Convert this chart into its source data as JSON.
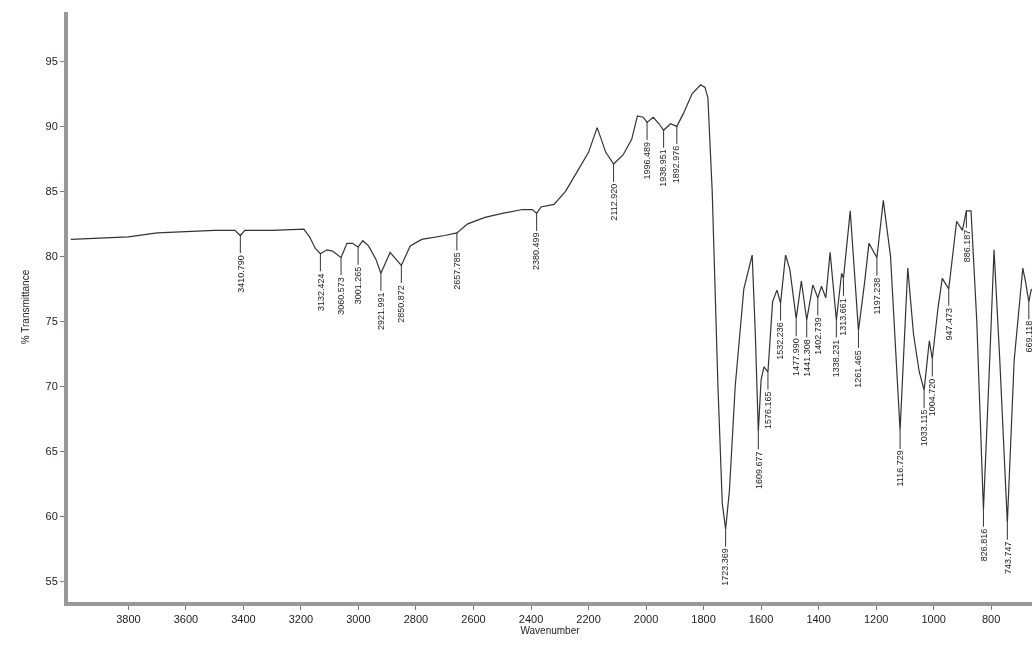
{
  "chart_data": {
    "type": "line",
    "xlabel": "Wavenumber",
    "ylabel": "% Transmittance",
    "x": [
      4000,
      3900,
      3800,
      3700,
      3600,
      3500,
      3430,
      3410.79,
      3395,
      3300,
      3190,
      3170,
      3150,
      3132.424,
      3110,
      3090,
      3060.573,
      3040,
      3020,
      3001.265,
      2985,
      2965,
      2940,
      2921.991,
      2890,
      2850.872,
      2820,
      2780,
      2700,
      2657.785,
      2620,
      2560,
      2500,
      2430,
      2395,
      2380.499,
      2365,
      2320,
      2280,
      2240,
      2200,
      2170,
      2140,
      2112.92,
      2080,
      2050,
      2030,
      2010,
      1996.489,
      1975,
      1955,
      1938.951,
      1915,
      1892.976,
      1870,
      1840,
      1810,
      1795,
      1785,
      1770,
      1750,
      1735,
      1723.369,
      1710,
      1690,
      1660,
      1631,
      1620,
      1609.677,
      1600,
      1590,
      1576.165,
      1560,
      1545,
      1532.236,
      1515,
      1500,
      1477.99,
      1460,
      1441.308,
      1420,
      1402.739,
      1390,
      1375,
      1360,
      1338.231,
      1320,
      1313.661,
      1290,
      1261.465,
      1240,
      1225,
      1197.238,
      1175,
      1150,
      1116.729,
      1090,
      1070,
      1050,
      1033.115,
      1015,
      1004.72,
      985,
      970,
      947.473,
      920,
      900,
      886.187,
      870,
      850,
      826.816,
      805,
      790,
      770,
      743.747,
      720,
      690,
      680,
      669.118,
      660
    ],
    "series": [
      {
        "color": "#333333",
        "values": [
          81.3,
          81.4,
          81.5,
          81.8,
          81.9,
          82.0,
          82.0,
          81.6,
          82.0,
          82.0,
          82.1,
          81.5,
          80.6,
          80.2,
          80.5,
          80.4,
          79.9,
          81.0,
          81.0,
          80.7,
          81.2,
          80.8,
          79.8,
          78.7,
          80.3,
          79.3,
          80.8,
          81.3,
          81.6,
          81.8,
          82.5,
          83.0,
          83.3,
          83.6,
          83.6,
          83.3,
          83.8,
          84.0,
          85.0,
          86.5,
          88.0,
          89.9,
          88.0,
          87.1,
          87.8,
          89.0,
          90.8,
          90.7,
          90.3,
          90.7,
          90.2,
          89.7,
          90.2,
          90.0,
          91.0,
          92.5,
          93.2,
          93.0,
          92.2,
          85.0,
          70.0,
          61.0,
          59.0,
          62.0,
          70.0,
          77.5,
          80.1,
          74.0,
          66.5,
          70.5,
          71.5,
          71.1,
          76.5,
          77.4,
          76.4,
          80.1,
          79.0,
          75.2,
          78.1,
          75.1,
          77.8,
          76.8,
          77.7,
          76.8,
          80.3,
          75.1,
          78.7,
          78.3,
          83.5,
          74.3,
          78.0,
          81.0,
          79.9,
          84.3,
          80.0,
          66.6,
          79.1,
          74.0,
          71.1,
          69.7,
          73.5,
          72.1,
          76.0,
          78.3,
          77.5,
          82.7,
          82.0,
          83.5,
          83.5,
          75.0,
          60.5,
          72.0,
          80.5,
          72.0,
          59.5,
          72.0,
          79.1,
          78.0,
          76.5,
          77.5
        ]
      }
    ],
    "xlim": [
      4010,
      658
    ],
    "ylim": [
      53.4,
      98.8
    ],
    "xticks": [
      3800,
      3600,
      3400,
      3200,
      3000,
      2800,
      2600,
      2400,
      2200,
      2000,
      1800,
      1600,
      1400,
      1200,
      1000,
      800
    ],
    "yticks": [
      55,
      60,
      65,
      70,
      75,
      80,
      85,
      90,
      95
    ],
    "marker": "none",
    "line_style": "solid",
    "annotations": [
      {
        "text": "3410.790",
        "x": 3410.79,
        "y": 81.6
      },
      {
        "text": "3132.424",
        "x": 3132.424,
        "y": 80.2
      },
      {
        "text": "3060.573",
        "x": 3060.573,
        "y": 79.9
      },
      {
        "text": "3001.265",
        "x": 3001.265,
        "y": 80.7
      },
      {
        "text": "2921.991",
        "x": 2921.991,
        "y": 78.7
      },
      {
        "text": "2850.872",
        "x": 2850.872,
        "y": 79.3
      },
      {
        "text": "2657.785",
        "x": 2657.785,
        "y": 81.8
      },
      {
        "text": "2380.499",
        "x": 2380.499,
        "y": 83.3
      },
      {
        "text": "2112.920",
        "x": 2112.92,
        "y": 87.1
      },
      {
        "text": "1996.489",
        "x": 1996.489,
        "y": 90.3
      },
      {
        "text": "1938.951",
        "x": 1938.951,
        "y": 89.7
      },
      {
        "text": "1892.976",
        "x": 1892.976,
        "y": 90.0
      },
      {
        "text": "1723.369",
        "x": 1723.369,
        "y": 59.0
      },
      {
        "text": "1609.677",
        "x": 1609.677,
        "y": 66.5
      },
      {
        "text": "1576.165",
        "x": 1576.165,
        "y": 71.1
      },
      {
        "text": "1532.236",
        "x": 1532.236,
        "y": 76.4
      },
      {
        "text": "1477.990",
        "x": 1477.99,
        "y": 75.2
      },
      {
        "text": "1441.308",
        "x": 1441.308,
        "y": 75.1
      },
      {
        "text": "1402.739",
        "x": 1402.739,
        "y": 76.8
      },
      {
        "text": "1338.231",
        "x": 1338.231,
        "y": 75.1
      },
      {
        "text": "1313.661",
        "x": 1313.661,
        "y": 78.3
      },
      {
        "text": "1261.465",
        "x": 1261.465,
        "y": 74.3
      },
      {
        "text": "1197.238",
        "x": 1197.238,
        "y": 79.9
      },
      {
        "text": "1116.729",
        "x": 1116.729,
        "y": 66.6
      },
      {
        "text": "1033.115",
        "x": 1033.115,
        "y": 69.7
      },
      {
        "text": "1004.720",
        "x": 1004.72,
        "y": 72.1
      },
      {
        "text": "947.473",
        "x": 947.473,
        "y": 77.5
      },
      {
        "text": "886.187",
        "x": 886.187,
        "y": 83.5
      },
      {
        "text": "826.816",
        "x": 826.816,
        "y": 60.5
      },
      {
        "text": "743.747",
        "x": 743.747,
        "y": 59.5
      },
      {
        "text": "669.118",
        "x": 669.118,
        "y": 76.5
      }
    ]
  }
}
